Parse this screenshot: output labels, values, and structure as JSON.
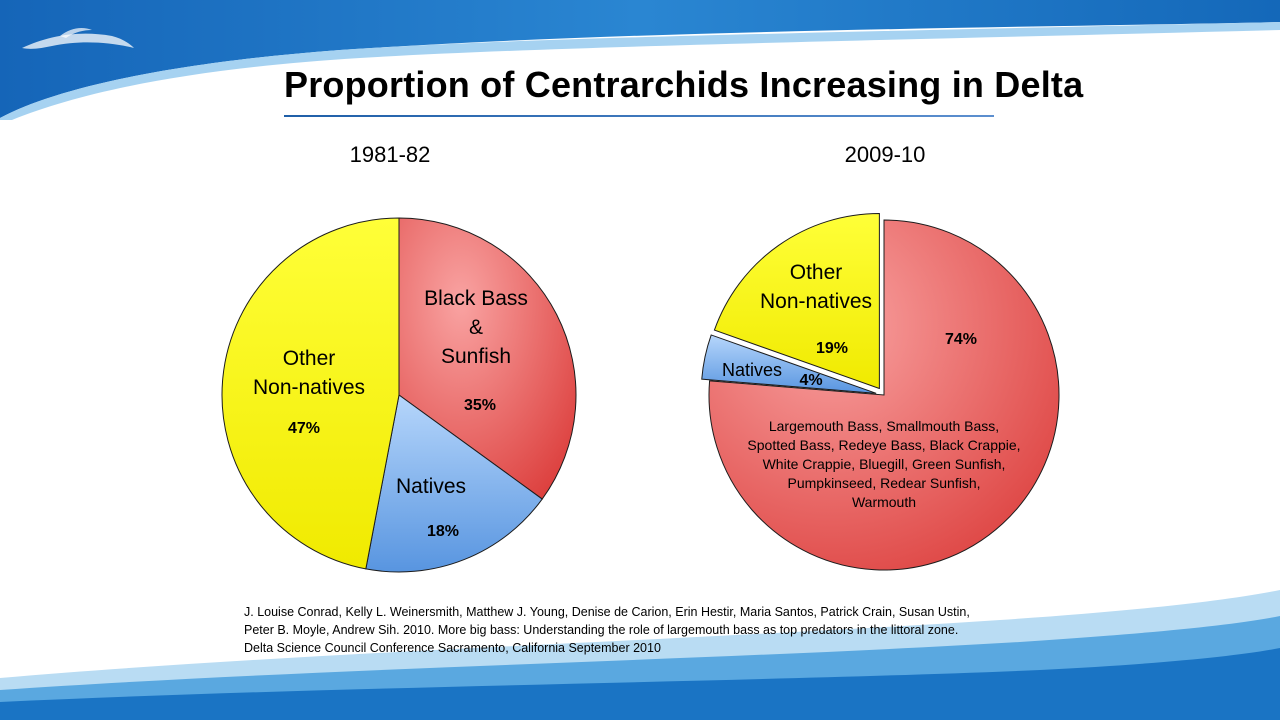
{
  "title": "Proportion of Centrarchids Increasing in Delta",
  "colors": {
    "black_bass_sunfish": "#e8504f",
    "natives": "#6aa3e8",
    "other_non_natives": "#f5f000",
    "wave_dark": "#1a74c4",
    "wave_light": "#8fc6ef"
  },
  "chart_data": [
    {
      "type": "pie",
      "title": "1981-82",
      "slices": [
        {
          "key": "black_bass_sunfish",
          "label_lines": [
            "Black Bass",
            "&",
            "Sunfish"
          ],
          "value": 35,
          "value_label": "35%"
        },
        {
          "key": "natives",
          "label_lines": [
            "Natives"
          ],
          "value": 18,
          "value_label": "18%"
        },
        {
          "key": "other_non_natives",
          "label_lines": [
            "Other",
            "Non-natives"
          ],
          "value": 47,
          "value_label": "47%"
        }
      ]
    },
    {
      "type": "pie",
      "title": "2009-10",
      "slices": [
        {
          "key": "black_bass_sunfish",
          "label_lines": [],
          "value": 74,
          "value_label": "74%",
          "note_lines": [
            "Largemouth Bass, Smallmouth Bass,",
            "Spotted Bass, Redeye Bass, Black Crappie,",
            "White Crappie, Bluegill, Green Sunfish,",
            "Pumpkinseed, Redear Sunfish,",
            "Warmouth"
          ]
        },
        {
          "key": "natives",
          "label_lines": [
            "Natives"
          ],
          "value": 4,
          "value_label": "4%"
        },
        {
          "key": "other_non_natives",
          "label_lines": [
            "Other",
            "Non-natives"
          ],
          "value": 19,
          "value_label": "19%"
        }
      ]
    }
  ],
  "citation": [
    "J. Louise Conrad, Kelly L. Weinersmith, Matthew J. Young, Denise de Carion, Erin Hestir, Maria Santos, Patrick Crain, Susan Ustin,",
    "Peter B. Moyle, Andrew Sih. 2010. More big bass: Understanding the role of largemouth bass as top predators in the littoral zone.",
    "Delta Science Council Conference Sacramento, California September 2010"
  ]
}
